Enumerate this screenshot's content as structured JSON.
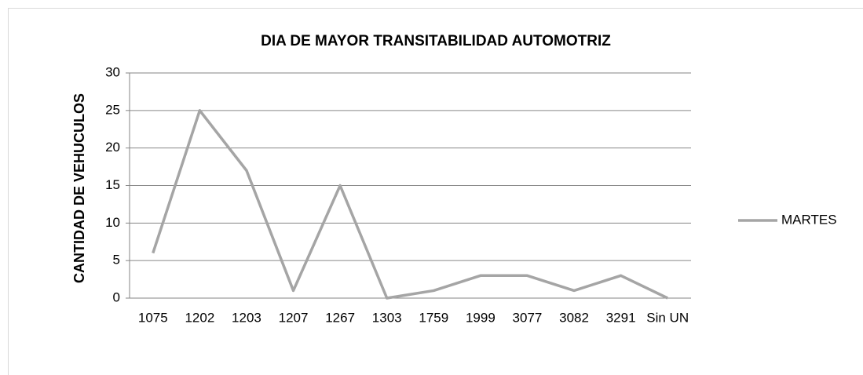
{
  "chart_data": {
    "type": "line",
    "title": "DIA DE MAYOR TRANSITABILIDAD AUTOMOTRIZ",
    "y_label": "CANTIDAD DE VEHUCULOS",
    "categories": [
      "1075",
      "1202",
      "1203",
      "1207",
      "1267",
      "1303",
      "1759",
      "1999",
      "3077",
      "3082",
      "3291",
      "Sin UN"
    ],
    "series": [
      {
        "name": "MARTES",
        "color": "#a5a5a5",
        "values": [
          6,
          25,
          17,
          1,
          15,
          0,
          1,
          3,
          3,
          1,
          3,
          0
        ]
      }
    ],
    "ylim": [
      0,
      30
    ],
    "yticks": [
      0,
      5,
      10,
      15,
      20,
      25,
      30
    ],
    "grid": true,
    "legend": "right"
  }
}
